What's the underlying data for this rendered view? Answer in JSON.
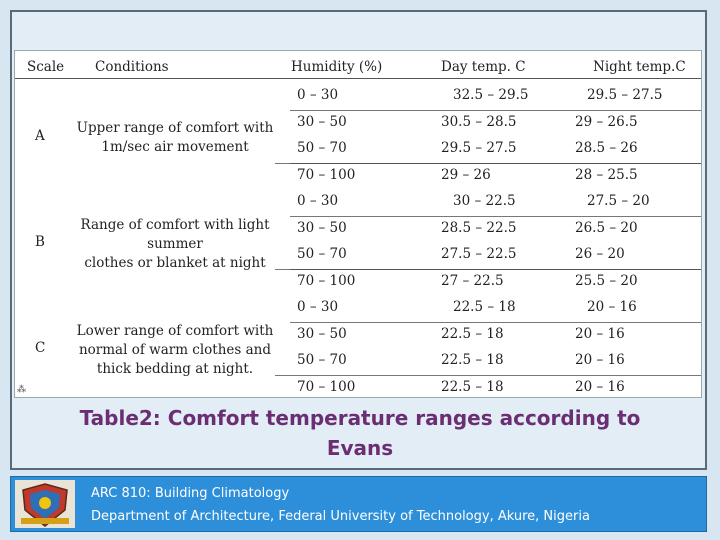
{
  "table": {
    "headers": [
      "Scale",
      "Conditions",
      "Humidity (%)",
      "Day temp. C",
      "Night temp.C"
    ],
    "groups": [
      {
        "scale": "A",
        "condition_lines": [
          "Upper range of comfort with",
          "1m/sec air movement"
        ],
        "rows": [
          [
            "0 – 30",
            "32.5 – 29.5",
            "29.5 – 27.5"
          ],
          [
            "30 – 50",
            "30.5 – 28.5",
            "29 – 26.5"
          ],
          [
            "50 – 70",
            "29.5 – 27.5",
            "28.5 – 26"
          ],
          [
            "70 – 100",
            "29 – 26",
            "28 – 25.5"
          ]
        ]
      },
      {
        "scale": "B",
        "condition_lines": [
          "Range of comfort with light",
          "summer",
          "clothes or blanket at night"
        ],
        "rows": [
          [
            "0 – 30",
            "30 – 22.5",
            "27.5 – 20"
          ],
          [
            "30 – 50",
            "28.5 – 22.5",
            "26.5 – 20"
          ],
          [
            "50 – 70",
            "27.5 – 22.5",
            "26 – 20"
          ],
          [
            "70 – 100",
            "27 – 22.5",
            "25.5 – 20"
          ]
        ]
      },
      {
        "scale": "C",
        "condition_lines": [
          "Lower range of comfort with",
          "normal of warm clothes and",
          "thick bedding at night."
        ],
        "rows": [
          [
            "0 – 30",
            "22.5 – 18",
            "20 – 16"
          ],
          [
            "30 – 50",
            "22.5 – 18",
            "20 – 16"
          ],
          [
            "50 – 70",
            "22.5 – 18",
            "20 – 16"
          ],
          [
            "70 – 100",
            "22.5 – 18",
            "20 – 16"
          ]
        ]
      }
    ]
  },
  "caption": {
    "line1": "Table2: Comfort temperature ranges according to",
    "line2": "Evans"
  },
  "footer": {
    "course": "ARC 810: Building Climatology",
    "department": "Department of Architecture, Federal University of Technology, Akure, Nigeria",
    "logo_icon": "university-crest-icon"
  },
  "colors": {
    "caption": "#6b2e73",
    "footer_bg": "#2d8fd9",
    "slide_bg": "#d8e6f1"
  }
}
